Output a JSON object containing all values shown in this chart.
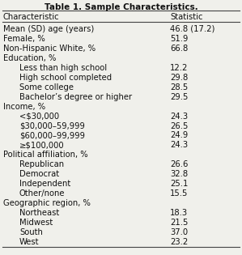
{
  "title": "Table 1. Sample Characteristics.",
  "headers": [
    "Characteristic",
    "Statistic"
  ],
  "rows": [
    [
      "Mean (SD) age (years)",
      "46.8 (17.2)",
      false
    ],
    [
      "Female, %",
      "51.9",
      false
    ],
    [
      "Non-Hispanic White, %",
      "66.8",
      false
    ],
    [
      "Education, %",
      "",
      false
    ],
    [
      "    Less than high school",
      "12.2",
      true
    ],
    [
      "    High school completed",
      "29.8",
      true
    ],
    [
      "    Some college",
      "28.5",
      true
    ],
    [
      "    Bachelor’s degree or higher",
      "29.5",
      true
    ],
    [
      "Income, %",
      "",
      false
    ],
    [
      "    <$30,000",
      "24.3",
      true
    ],
    [
      "    $30,000–59,999",
      "26.5",
      true
    ],
    [
      "    $60,000–99,999",
      "24.9",
      true
    ],
    [
      "    ≥$100,000",
      "24.3",
      true
    ],
    [
      "Political affiliation, %",
      "",
      false
    ],
    [
      "    Republican",
      "26.6",
      true
    ],
    [
      "    Democrat",
      "32.8",
      true
    ],
    [
      "    Independent",
      "25.1",
      true
    ],
    [
      "    Other/none",
      "15.5",
      true
    ],
    [
      "Geographic region, %",
      "",
      false
    ],
    [
      "    Northeast",
      "18.3",
      true
    ],
    [
      "    Midwest",
      "21.5",
      true
    ],
    [
      "    South",
      "37.0",
      true
    ],
    [
      "    West",
      "23.2",
      true
    ]
  ],
  "bg_color": "#f0f0eb",
  "line_color": "#444444",
  "text_color": "#111111",
  "font_size": 7.2,
  "title_font_size": 7.5
}
